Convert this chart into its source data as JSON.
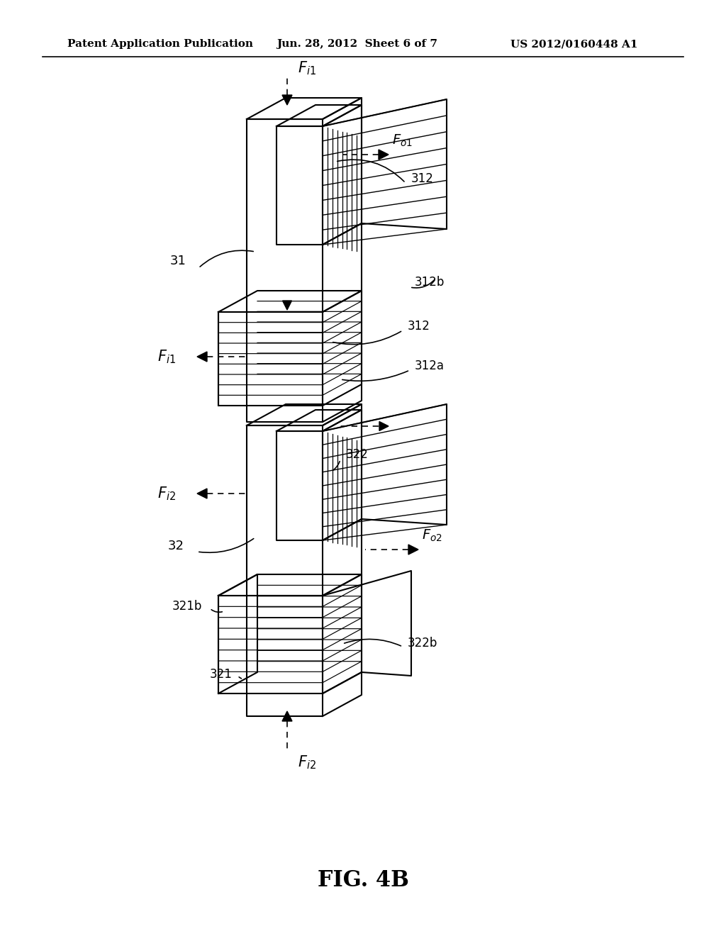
{
  "header_left": "Patent Application Publication",
  "header_mid": "Jun. 28, 2012  Sheet 6 of 7",
  "header_right": "US 2012/0160448 A1",
  "figure_label": "FIG. 4B",
  "bg_color": "#ffffff",
  "line_color": "#000000",
  "gray_color": "#aaaaaa"
}
